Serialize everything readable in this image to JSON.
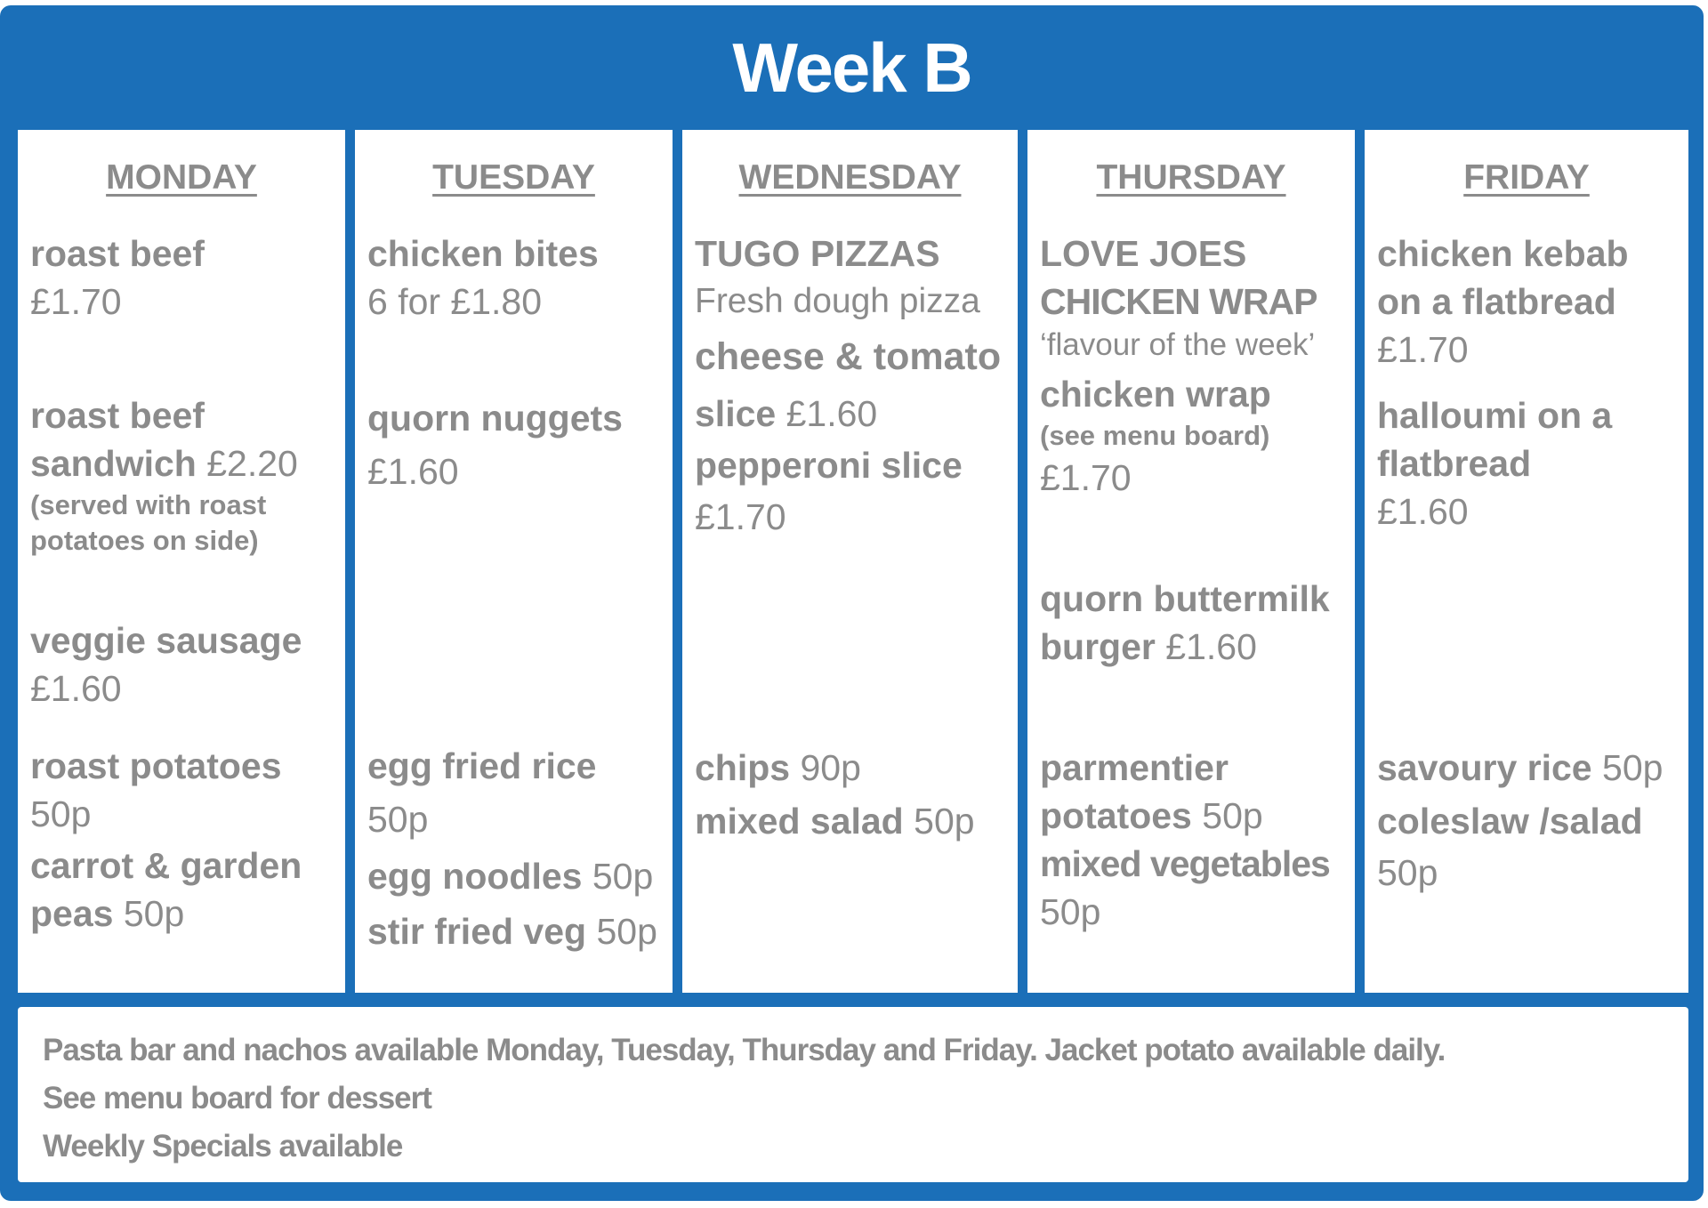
{
  "title": "Week B",
  "days": {
    "monday": {
      "name": "MONDAY",
      "i1_name": "roast beef",
      "i1_price": "£1.70",
      "i2_name": "roast beef",
      "i2_name2": "sandwich",
      "i2_price": "£2.20",
      "i2_note1": "(served with roast",
      "i2_note2": "potatoes on side)",
      "i3_name": "veggie sausage",
      "i3_price": "£1.60",
      "i4_name": "roast potatoes",
      "i4_price": "50p",
      "i5_name": "carrot & garden",
      "i5_name2": "peas",
      "i5_price": "50p"
    },
    "tuesday": {
      "name": "TUESDAY",
      "i1_name": "chicken bites",
      "i1_price": "6 for £1.80",
      "i2_name": "quorn nuggets",
      "i2_price": "£1.60",
      "i3_name": "egg fried rice",
      "i3_price": "50p",
      "i4_name": "egg noodles",
      "i4_price": "50p",
      "i5_name": "stir fried veg",
      "i5_price": "50p"
    },
    "wednesday": {
      "name": "WEDNESDAY",
      "i1_name": "TUGO PIZZAS",
      "i1_desc": "Fresh dough pizza",
      "i2_name": "cheese & tomato",
      "i2_name2": "slice",
      "i2_price": "£1.60",
      "i3_name": "pepperoni slice",
      "i3_price": "£1.70",
      "i4_name": "chips",
      "i4_price": "90p",
      "i5_name": "mixed salad",
      "i5_price": "50p"
    },
    "thursday": {
      "name": "THURSDAY",
      "i1_name": "LOVE JOES",
      "i1_name2": "CHICKEN WRAP",
      "i1_desc": "‘flavour of the week’",
      "i2_name": "chicken wrap",
      "i2_note": "(see menu board)",
      "i2_price": "£1.70",
      "i3_name": "quorn buttermilk",
      "i3_name2": "burger",
      "i3_price": "£1.60",
      "i4_name": "parmentier",
      "i4_name2": "potatoes",
      "i4_price": "50p",
      "i5_name": "mixed vegetables",
      "i5_price": "50p"
    },
    "friday": {
      "name": "FRIDAY",
      "i1_name": "chicken kebab",
      "i1_name2": "on a flatbread",
      "i1_price": "£1.70",
      "i2_name": "halloumi on a",
      "i2_name2": "flatbread",
      "i2_price": "£1.60",
      "i3_name": "savoury rice",
      "i3_price": "50p",
      "i4_name": "coleslaw /salad",
      "i4_price": "50p"
    }
  },
  "footer": {
    "line1": "Pasta bar and nachos available Monday, Tuesday, Thursday and Friday.  Jacket potato available daily.",
    "line2": "See menu board for dessert",
    "line3": "Weekly Specials available"
  }
}
